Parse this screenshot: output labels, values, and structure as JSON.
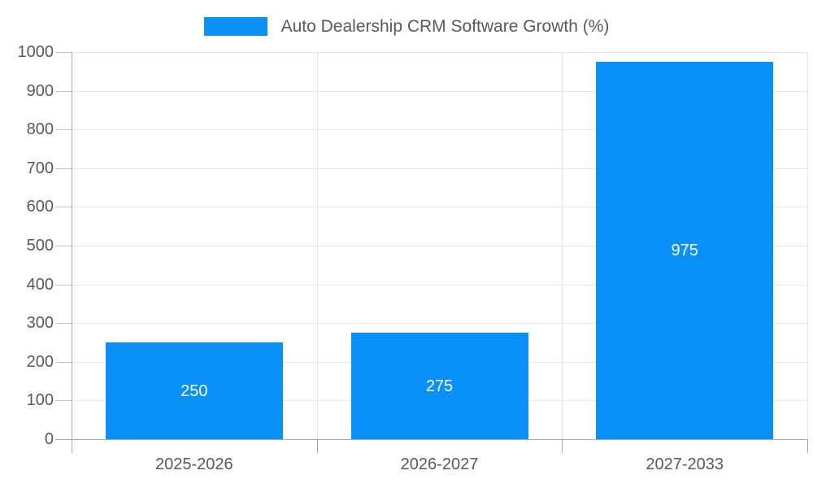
{
  "chart_data": {
    "type": "bar",
    "title": "Auto Dealership CRM Software Growth (%)",
    "categories": [
      "2025-2026",
      "2026-2027",
      "2027-2033"
    ],
    "values": [
      250,
      275,
      975
    ],
    "series": [
      {
        "name": "Auto Dealership CRM Software Growth (%)",
        "values": [
          250,
          275,
          975
        ]
      }
    ],
    "value_labels": [
      "250",
      "275",
      "975"
    ],
    "xlabel": "",
    "ylabel": "",
    "ylim": [
      0,
      1000
    ],
    "ytick_step": 100,
    "yticks": [
      "0",
      "100",
      "200",
      "300",
      "400",
      "500",
      "600",
      "700",
      "800",
      "900",
      "1000"
    ],
    "grid": true,
    "legend_position": "top-center",
    "value_label_position": "inside-center"
  },
  "legend": {
    "label": "Auto Dealership CRM Software Growth (%)"
  },
  "colors": {
    "bar": "#0991f9",
    "value_label": "#ffffff",
    "axis_text": "#58595b",
    "title_text": "#595959",
    "gridline": "#e5e5e5",
    "tick": "#c4c4c4",
    "axis_line": "#a8a8a8",
    "background": "#ffffff"
  }
}
